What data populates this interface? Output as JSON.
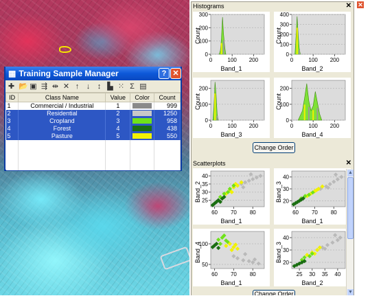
{
  "window_close_icon": "close-icon",
  "tsm": {
    "title": "Training Sample Manager",
    "toolbar_icons": [
      "add-icon",
      "open-folder-icon",
      "save-icon",
      "merge-icon",
      "split-icon",
      "delete-icon",
      "up-arrow-icon",
      "down-arrow-icon",
      "sort-icon",
      "histogram-icon",
      "scatterplot-icon",
      "statistics-icon",
      "options-icon"
    ],
    "toolbar_glyphs": [
      "✚",
      "📂",
      "▣",
      "⇶",
      "⇹",
      "✕",
      "↑",
      "↓",
      "↕",
      "▙",
      "⁙",
      "Σ",
      "▤"
    ],
    "columns": [
      "ID",
      "Class Name",
      "Value",
      "Color",
      "Count"
    ],
    "rows": [
      {
        "id": "1",
        "name": "Commercial / Industrial",
        "value": "1",
        "color": "#8a8a8a",
        "count": "999",
        "selected": false
      },
      {
        "id": "2",
        "name": "Residential",
        "value": "2",
        "color": "#c8c8c8",
        "count": "1250",
        "selected": true
      },
      {
        "id": "3",
        "name": "Cropland",
        "value": "3",
        "color": "#6fe21a",
        "count": "958",
        "selected": true
      },
      {
        "id": "4",
        "name": "Forest",
        "value": "4",
        "color": "#1b6e12",
        "count": "438",
        "selected": true
      },
      {
        "id": "5",
        "name": "Pasture",
        "value": "5",
        "color": "#f2f200",
        "count": "550",
        "selected": true
      }
    ]
  },
  "histograms": {
    "title": "Histograms",
    "close_icon": "close-icon",
    "y_label": "Count",
    "change_order_label": "Change Order",
    "charts": [
      {
        "x_label": "Band_1",
        "x_ticks": [
          "0",
          "100",
          "200"
        ],
        "y_ticks": [
          "0",
          "100",
          "200",
          "300"
        ]
      },
      {
        "x_label": "Band_2",
        "x_ticks": [
          "0",
          "100",
          "200"
        ],
        "y_ticks": [
          "0",
          "100",
          "200",
          "300",
          "400"
        ]
      },
      {
        "x_label": "Band_3",
        "x_ticks": [
          "0",
          "100",
          "200"
        ],
        "y_ticks": [
          "0",
          "100",
          "200"
        ]
      },
      {
        "x_label": "Band_4",
        "x_ticks": [
          "0",
          "100",
          "200"
        ],
        "y_ticks": [
          "0",
          "100",
          "200"
        ]
      }
    ]
  },
  "scatterplots": {
    "title": "Scatterplots",
    "close_icon": "close-icon",
    "change_order_label": "Change Order",
    "charts": [
      {
        "x_label": "Band_1",
        "y_label": "Band_2",
        "x_ticks": [
          "60",
          "70",
          "80"
        ],
        "y_ticks": [
          "25",
          "30",
          "35",
          "40"
        ]
      },
      {
        "x_label": "Band_1",
        "y_label": "Band_3",
        "x_ticks": [
          "60",
          "70",
          "80"
        ],
        "y_ticks": [
          "20",
          "30",
          "40"
        ]
      },
      {
        "x_label": "Band_1",
        "y_label": "Band_4",
        "x_ticks": [
          "60",
          "70",
          "80"
        ],
        "y_ticks": [
          "50",
          "100"
        ]
      },
      {
        "x_label": "Band_2",
        "y_label": "Band_3",
        "x_ticks": [
          "25",
          "30",
          "35",
          "40"
        ],
        "y_ticks": [
          "20",
          "30",
          "40"
        ]
      }
    ]
  },
  "chart_data": [
    {
      "type": "area",
      "xlabel": "Band_1",
      "ylabel": "Count",
      "xlim": [
        0,
        250
      ],
      "ylim": [
        0,
        300
      ],
      "series": [
        {
          "x": [
            40,
            45,
            50,
            55,
            60,
            65,
            70
          ],
          "values": [
            0,
            30,
            120,
            280,
            150,
            60,
            0
          ]
        }
      ]
    },
    {
      "type": "area",
      "xlabel": "Band_2",
      "ylabel": "Count",
      "xlim": [
        0,
        250
      ],
      "ylim": [
        0,
        400
      ],
      "series": [
        {
          "x": [
            15,
            20,
            25,
            30,
            35,
            40
          ],
          "values": [
            0,
            180,
            380,
            200,
            60,
            0
          ]
        }
      ]
    },
    {
      "type": "area",
      "xlabel": "Band_3",
      "ylabel": "Count",
      "xlim": [
        0,
        250
      ],
      "ylim": [
        0,
        250
      ],
      "series": [
        {
          "x": [
            10,
            15,
            20,
            25,
            30,
            35
          ],
          "values": [
            0,
            90,
            240,
            160,
            40,
            0
          ]
        }
      ]
    },
    {
      "type": "area",
      "xlabel": "Band_4",
      "ylabel": "Count",
      "xlim": [
        0,
        250
      ],
      "ylim": [
        0,
        250
      ],
      "series": [
        {
          "x": [
            30,
            50,
            60,
            70,
            80,
            90,
            100,
            110,
            120,
            130,
            140
          ],
          "values": [
            0,
            60,
            140,
            230,
            120,
            60,
            90,
            180,
            110,
            40,
            0
          ]
        }
      ]
    },
    {
      "type": "scatter",
      "xlabel": "Band_1",
      "ylabel": "Band_2",
      "xlim": [
        58,
        86
      ],
      "ylim": [
        21,
        43
      ],
      "series": [
        {
          "color": "#b9b9b9",
          "x": [
            70,
            72,
            74,
            76,
            78,
            80,
            82,
            84,
            75,
            79
          ],
          "y": [
            33,
            34,
            35,
            36,
            37,
            38,
            39,
            40,
            33,
            41
          ]
        },
        {
          "color": "#f2f200",
          "x": [
            66,
            68,
            70,
            72,
            74,
            69,
            71
          ],
          "y": [
            29,
            31,
            33,
            34,
            36,
            30,
            35
          ]
        },
        {
          "color": "#6fe21a",
          "x": [
            63,
            65,
            67,
            68,
            70
          ],
          "y": [
            27,
            29,
            30,
            32,
            34
          ]
        },
        {
          "color": "#1b6e12",
          "x": [
            59,
            60,
            61,
            62,
            63,
            64,
            65
          ],
          "y": [
            22,
            23,
            24,
            25,
            24,
            26,
            27
          ]
        }
      ]
    },
    {
      "type": "scatter",
      "xlabel": "Band_1",
      "ylabel": "Band_3",
      "xlim": [
        58,
        86
      ],
      "ylim": [
        15,
        45
      ],
      "series": [
        {
          "color": "#b9b9b9",
          "x": [
            70,
            73,
            76,
            78,
            80,
            82,
            84,
            77,
            81
          ],
          "y": [
            28,
            30,
            32,
            34,
            36,
            38,
            40,
            31,
            42
          ]
        },
        {
          "color": "#f2f200",
          "x": [
            66,
            68,
            70,
            72,
            74,
            71
          ],
          "y": [
            24,
            26,
            28,
            30,
            32,
            29
          ]
        },
        {
          "color": "#6fe21a",
          "x": [
            63,
            65,
            67,
            69
          ],
          "y": [
            22,
            24,
            25,
            27
          ]
        },
        {
          "color": "#1b6e12",
          "x": [
            59,
            60,
            61,
            62,
            63,
            64
          ],
          "y": [
            17,
            18,
            19,
            20,
            21,
            22
          ]
        }
      ]
    },
    {
      "type": "scatter",
      "xlabel": "Band_1",
      "ylabel": "Band_4",
      "xlim": [
        58,
        86
      ],
      "ylim": [
        40,
        130
      ],
      "series": [
        {
          "color": "#b9b9b9",
          "x": [
            70,
            72,
            75,
            78,
            80,
            83,
            76,
            81
          ],
          "y": [
            70,
            65,
            60,
            58,
            55,
            52,
            75,
            62
          ]
        },
        {
          "color": "#6fe21a",
          "x": [
            62,
            64,
            66,
            67,
            65,
            63
          ],
          "y": [
            110,
            115,
            108,
            104,
            120,
            100
          ]
        },
        {
          "color": "#f2f200",
          "x": [
            66,
            68,
            70,
            72,
            69,
            71
          ],
          "y": [
            95,
            100,
            92,
            88,
            85,
            98
          ]
        },
        {
          "color": "#1b6e12",
          "x": [
            59,
            60,
            61,
            62
          ],
          "y": [
            92,
            96,
            100,
            90
          ]
        }
      ]
    },
    {
      "type": "scatter",
      "xlabel": "Band_2",
      "ylabel": "Band_3",
      "xlim": [
        22,
        43
      ],
      "ylim": [
        15,
        45
      ],
      "series": [
        {
          "color": "#b9b9b9",
          "x": [
            32,
            34,
            36,
            38,
            40,
            41,
            35,
            39
          ],
          "y": [
            30,
            32,
            34,
            36,
            38,
            40,
            31,
            42
          ]
        },
        {
          "color": "#f2f200",
          "x": [
            28,
            30,
            32,
            33,
            31
          ],
          "y": [
            26,
            28,
            30,
            32,
            27
          ]
        },
        {
          "color": "#6fe21a",
          "x": [
            26,
            27,
            29,
            30
          ],
          "y": [
            22,
            24,
            25,
            27
          ]
        },
        {
          "color": "#1b6e12",
          "x": [
            23,
            24,
            25,
            26,
            27
          ],
          "y": [
            17,
            18,
            19,
            20,
            21
          ]
        }
      ]
    }
  ]
}
